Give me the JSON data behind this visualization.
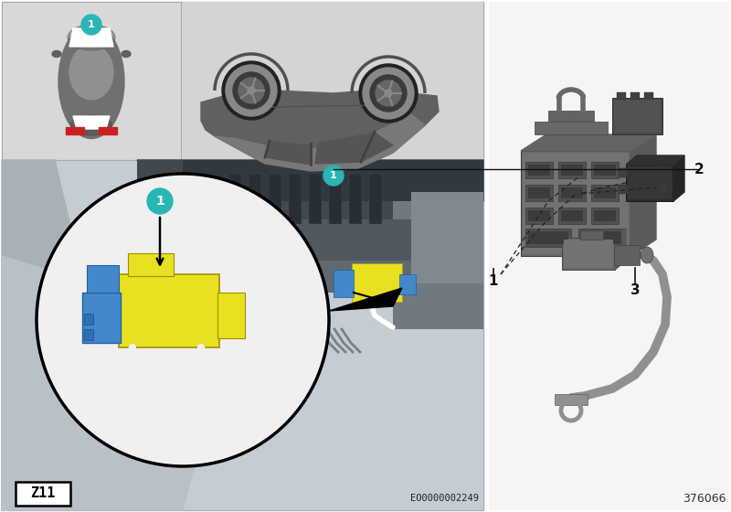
{
  "background_color": "#ffffff",
  "border_color": "#aaaaaa",
  "teal_color": "#2ab5b5",
  "z11_label": "Z11",
  "eo_label": "EO0000002249",
  "page_number": "376066",
  "top_left_bg": "#d8d8d8",
  "top_right_bg": "#d0d0d0",
  "main_photo_bg": "#a8a8a8",
  "yellow_part": "#e8e020",
  "blue_part": "#4488cc",
  "white_hose": "#f0f0f0",
  "dark_part": "#505050",
  "mid_gray": "#888888",
  "light_gray": "#c8c8c8",
  "very_dark": "#303030",
  "panel_divider": "#888888",
  "right_bg": "#f5f5f5",
  "part_label_color": "#111111",
  "dashed_line_color": "#222222",
  "cable_color": "#909090",
  "body_dark": "#5a5a5a",
  "body_mid": "#787878",
  "body_light": "#9a9a9a",
  "engine_bg1": "#8a9098",
  "engine_bg2": "#6a7278",
  "engine_bg3": "#b0b8c0",
  "zoom_border": "#111111",
  "arrow_color": "#111111",
  "car_body_gray": "#888888",
  "car_dark": "#444444",
  "car_light": "#c0c0c0",
  "win_gray": "#aaaaaa",
  "trunk_silver": "#b8bec4",
  "panel_bg": "#c4ccd4"
}
